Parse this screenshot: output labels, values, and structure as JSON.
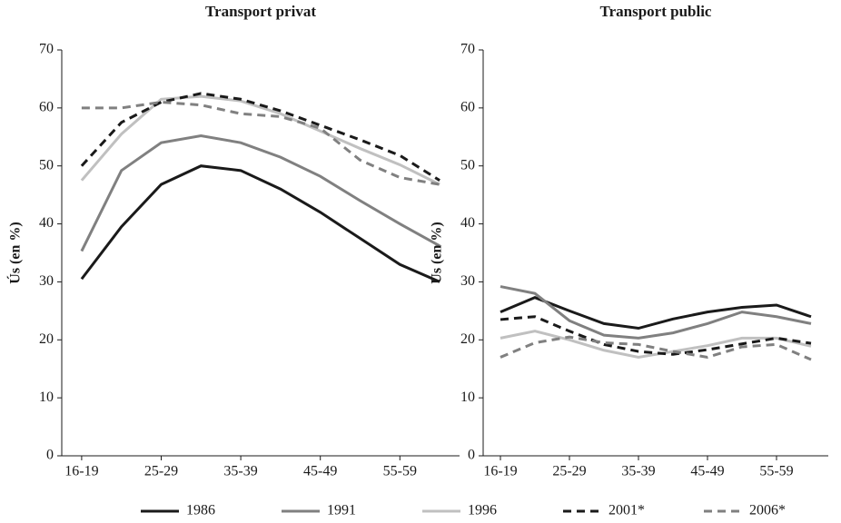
{
  "chart_data": [
    {
      "type": "line",
      "title": "Transport privat",
      "y_label": "Ús (en %)",
      "categories": [
        "16-19",
        null,
        "25-29",
        null,
        "35-39",
        null,
        "45-49",
        null,
        "55-59",
        null
      ],
      "ylim": [
        0,
        70
      ],
      "yticks": [
        0,
        10,
        20,
        30,
        40,
        50,
        60,
        70
      ],
      "series": [
        {
          "name": "1986",
          "color": "#1a1a1a",
          "dashed": false,
          "values": [
            30.5,
            39.5,
            46.8,
            50,
            49.2,
            46,
            42,
            37.5,
            33,
            30
          ]
        },
        {
          "name": "1991",
          "color": "#808080",
          "dashed": false,
          "values": [
            35.3,
            49.2,
            54,
            55.2,
            54,
            51.5,
            48.2,
            44,
            40,
            36.2
          ]
        },
        {
          "name": "1996",
          "color": "#c0c0c0",
          "dashed": false,
          "values": [
            47.5,
            55.5,
            61.5,
            62,
            61.2,
            59,
            56,
            53,
            50.2,
            46.8
          ]
        },
        {
          "name": "2001*",
          "color": "#1a1a1a",
          "dashed": true,
          "values": [
            50,
            57.5,
            61,
            62.5,
            61.5,
            59.5,
            57,
            54.5,
            51.8,
            47.5
          ]
        },
        {
          "name": "2006*",
          "color": "#808080",
          "dashed": true,
          "values": [
            60,
            60,
            61,
            60.5,
            59,
            58.5,
            56.5,
            51,
            48,
            46.8
          ]
        }
      ]
    },
    {
      "type": "line",
      "title": "Transport public",
      "y_label": "Ús (en %)",
      "categories": [
        "16-19",
        null,
        "25-29",
        null,
        "35-39",
        null,
        "45-49",
        null,
        "55-59",
        null
      ],
      "ylim": [
        0,
        70
      ],
      "yticks": [
        0,
        10,
        20,
        30,
        40,
        50,
        60,
        70
      ],
      "series": [
        {
          "name": "1986",
          "color": "#1a1a1a",
          "dashed": false,
          "values": [
            24.8,
            27.3,
            25,
            22.8,
            22,
            23.6,
            24.8,
            25.6,
            26,
            24
          ]
        },
        {
          "name": "1991",
          "color": "#808080",
          "dashed": false,
          "values": [
            29.2,
            28,
            23.3,
            20.8,
            20.3,
            21.2,
            22.8,
            24.8,
            24,
            22.8
          ]
        },
        {
          "name": "1996",
          "color": "#c0c0c0",
          "dashed": false,
          "values": [
            20.3,
            21.5,
            20,
            18.2,
            17,
            18,
            19,
            20.3,
            20.3,
            18.9
          ]
        },
        {
          "name": "2001*",
          "color": "#1a1a1a",
          "dashed": true,
          "values": [
            23.5,
            24,
            21.5,
            19.2,
            18,
            17.5,
            18.3,
            19.3,
            20.3,
            19.4
          ]
        },
        {
          "name": "2006*",
          "color": "#808080",
          "dashed": true,
          "values": [
            17,
            19.5,
            20.5,
            19.5,
            19.2,
            18,
            17,
            18.8,
            19.2,
            16.6
          ]
        }
      ]
    }
  ]
}
